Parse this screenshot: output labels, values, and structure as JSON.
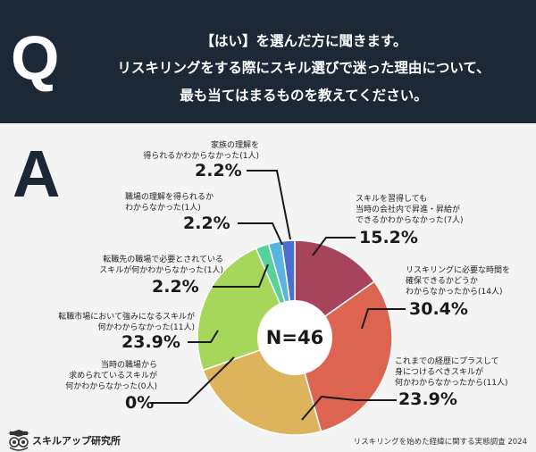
{
  "header": {
    "q_letter": "Q",
    "lines": [
      "【はい】を選んだ方に聞きます。",
      "リスキリングをする際にスキル選びで迷った理由について、",
      "最も当てはまるものを教えてください。"
    ]
  },
  "answer_letter": "A",
  "chart_data": {
    "type": "pie",
    "title": "リスキリングをする際にスキル選びで迷った理由",
    "total_label": "N=46",
    "slices": [
      {
        "label": "スキルを習得しても\n当時の会社内で昇進・昇給が\nできるかわからなかった(7人)",
        "count": 7,
        "percent_label": "15.2%",
        "color": "#a8435c"
      },
      {
        "label": "リスキリングに必要な時間を\n確保できるかどうか\nわからなかったから(14人)",
        "count": 14,
        "percent_label": "30.4%",
        "color": "#de6452"
      },
      {
        "label": "これまでの経歴にプラスして\n身につけるべきスキルが\n何かわからなかったから(11人)",
        "count": 11,
        "percent_label": "23.9%",
        "color": "#ddb35c"
      },
      {
        "label": "当時の職場から\n求められているスキルが\n何かわからなかった(0人)",
        "count": 0,
        "percent_label": "0%",
        "color": "#bbbbbb"
      },
      {
        "label": "転職市場において強みになるスキルが\n何かわからなかった(11人)",
        "count": 11,
        "percent_label": "23.9%",
        "color": "#a6d65a"
      },
      {
        "label": "転職先の職場で必要とされている\nスキルが何かわからなかった(1人)",
        "count": 1,
        "percent_label": "2.2%",
        "color": "#56d39a"
      },
      {
        "label": "職場の理解を得られるか\nわからなかった(1人)",
        "count": 1,
        "percent_label": "2.2%",
        "color": "#5ab4e0"
      },
      {
        "label": "家族の理解を\n得られるかわからなかった(1人)",
        "count": 1,
        "percent_label": "2.2%",
        "color": "#4a6fd0"
      }
    ]
  },
  "footer": {
    "brand": "スキルアップ研究所",
    "source": "リスキリングを始めた経緯に関する実態調査 2024"
  },
  "colors": {
    "header_bg": "#1c2836",
    "page_bg": "#f4f4f4",
    "line": "#1a1a1a"
  }
}
